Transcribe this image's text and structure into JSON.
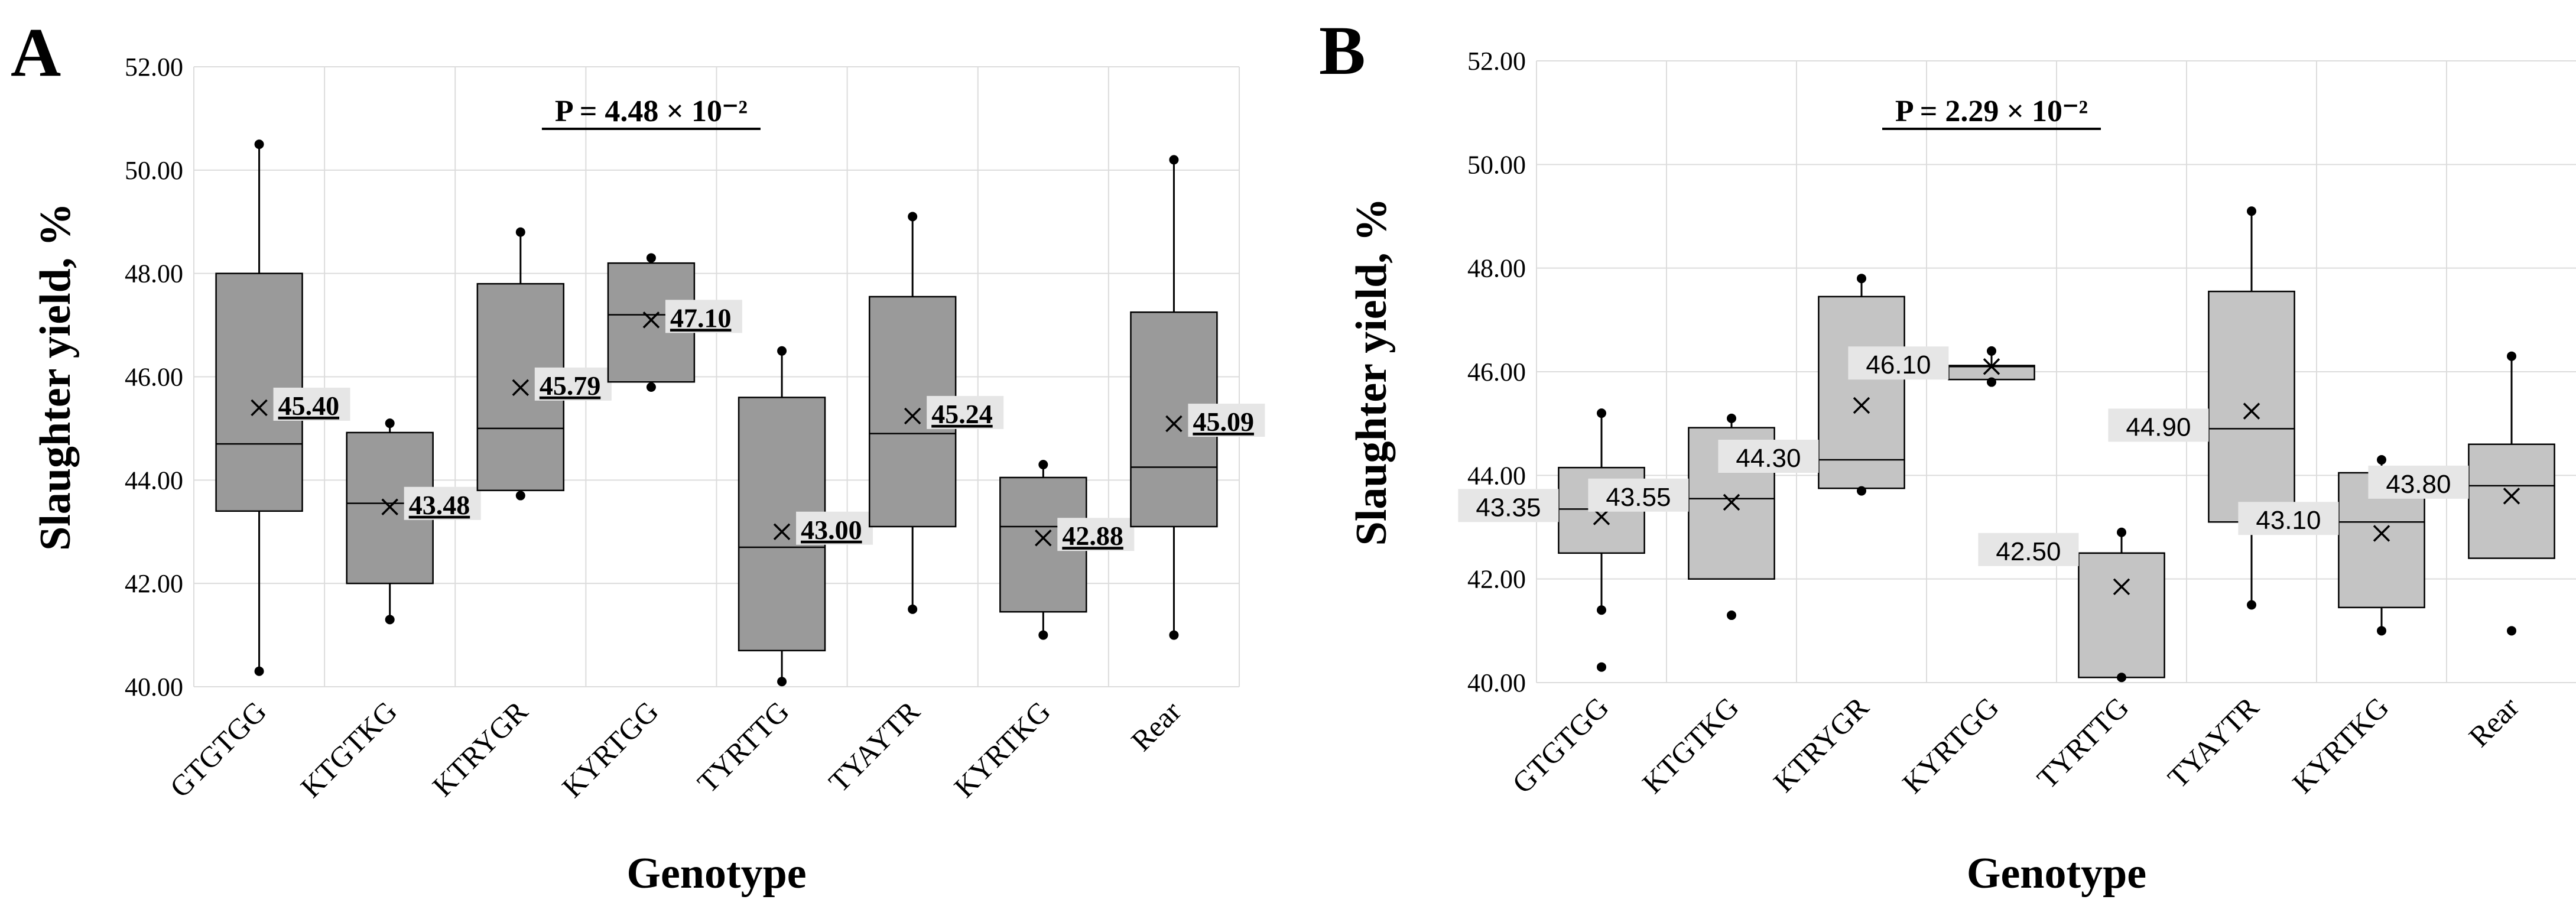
{
  "chart_data": [
    {
      "type": "box",
      "panel": "A",
      "p_text": "P = 4.48 × 10⁻²",
      "xlabel": "Genotype",
      "ylabel": "Slaughter yield, %",
      "ylim": [
        40,
        52
      ],
      "yticks": [
        "40.00",
        "42.00",
        "44.00",
        "46.00",
        "48.00",
        "50.00",
        "52.00"
      ],
      "box_color": "#9a9a9a",
      "label_style": "bold",
      "categories": [
        "GTGTGG",
        "KTGTKG",
        "KTRYGR",
        "KYRTGG",
        "TYRTTG",
        "TYAYTR",
        "KYRTKG",
        "Rear"
      ],
      "boxes": [
        {
          "min": 40.3,
          "q1": 43.4,
          "median": 44.7,
          "q3": 48.0,
          "max": 50.5,
          "mean": 45.4,
          "label": "45.40",
          "points": [
            40.3,
            50.5
          ]
        },
        {
          "min": 41.3,
          "q1": 42.0,
          "median": 43.55,
          "q3": 44.92,
          "max": 45.1,
          "mean": 43.48,
          "label": "43.48",
          "points": [
            41.3,
            45.1
          ]
        },
        {
          "min": 43.7,
          "q1": 43.8,
          "median": 45.0,
          "q3": 47.8,
          "max": 48.8,
          "mean": 45.79,
          "label": "45.79",
          "points": [
            43.7,
            48.8
          ]
        },
        {
          "min": 45.8,
          "q1": 45.9,
          "median": 47.2,
          "q3": 48.2,
          "max": 48.3,
          "mean": 47.1,
          "label": "47.10",
          "points": [
            45.8,
            48.3
          ]
        },
        {
          "min": 40.1,
          "q1": 40.7,
          "median": 42.7,
          "q3": 45.6,
          "max": 46.5,
          "mean": 43.0,
          "label": "43.00",
          "points": [
            40.1,
            46.5
          ]
        },
        {
          "min": 41.5,
          "q1": 43.1,
          "median": 44.9,
          "q3": 47.55,
          "max": 49.1,
          "mean": 45.24,
          "label": "45.24",
          "points": [
            41.5,
            49.1
          ]
        },
        {
          "min": 41.0,
          "q1": 41.45,
          "median": 43.1,
          "q3": 44.05,
          "max": 44.3,
          "mean": 42.88,
          "label": "42.88",
          "points": [
            41.0,
            44.3
          ]
        },
        {
          "min": 41.0,
          "q1": 43.1,
          "median": 44.25,
          "q3": 47.25,
          "max": 50.2,
          "mean": 45.09,
          "label": "45.09",
          "points": [
            41.0,
            50.2
          ]
        }
      ]
    },
    {
      "type": "box",
      "panel": "B",
      "p_text": "P = 2.29 × 10⁻²",
      "xlabel": "Genotype",
      "ylabel": "Slaughter yield, %",
      "ylim": [
        40,
        52
      ],
      "yticks": [
        "40.00",
        "42.00",
        "44.00",
        "46.00",
        "48.00",
        "50.00",
        "52.00"
      ],
      "box_color": "#c4c4c4",
      "label_style": "plain",
      "categories": [
        "GTGTGG",
        "KTGTKG",
        "KTRYGR",
        "KYRTGG",
        "TYRTTG",
        "TYAYTR",
        "KYRTKG",
        "Rear"
      ],
      "boxes": [
        {
          "min": 41.4,
          "q1": 42.5,
          "median": 43.35,
          "q3": 44.15,
          "max": 45.2,
          "mean": 43.2,
          "label": "43.35",
          "points": [
            40.3,
            41.4,
            45.2
          ]
        },
        {
          "min": 42.0,
          "q1": 42.0,
          "median": 43.55,
          "q3": 44.92,
          "max": 45.1,
          "mean": 43.48,
          "label": "43.55",
          "points": [
            41.3,
            45.1
          ]
        },
        {
          "min": 43.7,
          "q1": 43.75,
          "median": 44.3,
          "q3": 47.45,
          "max": 47.8,
          "mean": 45.35,
          "label": "44.30",
          "points": [
            43.7,
            47.8
          ]
        },
        {
          "min": 45.85,
          "q1": 45.85,
          "median": 46.1,
          "q3": 46.12,
          "max": 46.35,
          "mean": 46.1,
          "label": "46.10",
          "points": [
            45.8,
            46.4
          ]
        },
        {
          "min": 40.1,
          "q1": 40.1,
          "median": 42.5,
          "q3": 42.5,
          "max": 42.9,
          "mean": 41.85,
          "label": "42.50",
          "points": [
            40.1,
            42.9
          ]
        },
        {
          "min": 41.5,
          "q1": 43.1,
          "median": 44.9,
          "q3": 47.55,
          "max": 49.1,
          "mean": 45.24,
          "label": "44.90",
          "points": [
            41.5,
            49.1
          ]
        },
        {
          "min": 41.0,
          "q1": 41.45,
          "median": 43.1,
          "q3": 44.05,
          "max": 44.3,
          "mean": 42.88,
          "label": "43.10",
          "points": [
            41.0,
            44.3
          ]
        },
        {
          "min": 42.4,
          "q1": 42.4,
          "median": 43.8,
          "q3": 44.6,
          "max": 46.3,
          "mean": 43.6,
          "label": "43.80",
          "points": [
            41.0,
            46.3
          ]
        }
      ]
    }
  ]
}
